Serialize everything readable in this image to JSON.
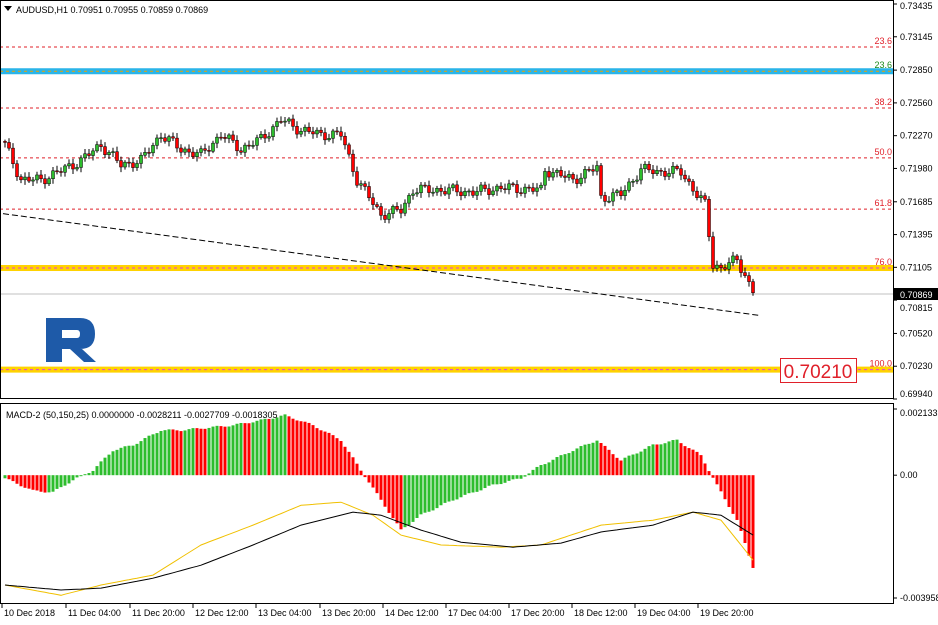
{
  "header": {
    "symbol_info": "AUDUSD,H1  0.70951 0.70955 0.70859 0.70869",
    "collapse_icon": "triangle-down-icon"
  },
  "indicator": {
    "label": "MACD-2 (50,150,25) 0.0000000 -0.0028211 -0.0027709 -0.0018305"
  },
  "colors": {
    "bull": "#2dbd2d",
    "bear": "#ff0000",
    "blue_band": "#2ab4e8",
    "yellow_band": "#ffd200",
    "signal": "#f0c000",
    "logo": "#1e5aa8"
  },
  "price_label": "0.70210",
  "chart_data": [
    {
      "type": "candlestick",
      "title": "AUDUSD,H1",
      "ylim": [
        0.6994,
        0.73435
      ],
      "y_ticks": [
        "0.73435",
        "0.73145",
        "0.72850",
        "0.72560",
        "0.72270",
        "0.71980",
        "0.71685",
        "0.71395",
        "0.71105",
        "0.70815",
        "0.70520",
        "0.70230",
        "0.69940"
      ],
      "x_ticks": [
        "10 Dec 2018",
        "11 Dec 04:00",
        "11 Dec 20:00",
        "12 Dec 12:00",
        "13 Dec 04:00",
        "13 Dec 20:00",
        "14 Dec 12:00",
        "17 Dec 04:00",
        "17 Dec 20:00",
        "18 Dec 12:00",
        "19 Dec 04:00",
        "19 Dec 20:00"
      ],
      "current_price": "0.70869",
      "close_path": [
        [
          0,
          0.7219
        ],
        [
          4,
          0.7188
        ],
        [
          9,
          0.7188
        ],
        [
          14,
          0.7196
        ],
        [
          19,
          0.7205
        ],
        [
          24,
          0.7219
        ],
        [
          29,
          0.7201
        ],
        [
          34,
          0.7205
        ],
        [
          39,
          0.7228
        ],
        [
          44,
          0.7215
        ],
        [
          49,
          0.721
        ],
        [
          54,
          0.7228
        ],
        [
          59,
          0.7215
        ],
        [
          64,
          0.7224
        ],
        [
          69,
          0.7241
        ],
        [
          74,
          0.7232
        ],
        [
          79,
          0.7228
        ],
        [
          84,
          0.7228
        ],
        [
          88,
          0.7188
        ],
        [
          94,
          0.7157
        ],
        [
          99,
          0.7161
        ],
        [
          102,
          0.7179
        ],
        [
          109,
          0.7179
        ],
        [
          117,
          0.7177
        ],
        [
          124,
          0.7181
        ],
        [
          134,
          0.7179
        ],
        [
          135,
          0.7197
        ],
        [
          142,
          0.7188
        ],
        [
          148,
          0.7199
        ],
        [
          149,
          0.7172
        ],
        [
          154,
          0.7175
        ],
        [
          159,
          0.7197
        ],
        [
          164,
          0.7195
        ],
        [
          169,
          0.7195
        ],
        [
          173,
          0.7175
        ],
        [
          175,
          0.7166
        ],
        [
          177,
          0.7113
        ],
        [
          179,
          0.711
        ],
        [
          183,
          0.7117
        ],
        [
          185,
          0.7104
        ],
        [
          187,
          0.7088
        ]
      ],
      "fib_levels": [
        {
          "label": "23.6",
          "price": 0.73055,
          "style": "red-dash"
        },
        {
          "label": "23.6",
          "price": 0.7284,
          "style": "blue-band"
        },
        {
          "label": "38.2",
          "price": 0.72515,
          "style": "red-dash"
        },
        {
          "label": "50.0",
          "price": 0.72073,
          "style": "red-dash"
        },
        {
          "label": "61.8",
          "price": 0.7162,
          "style": "red-dash"
        },
        {
          "label": "76.0",
          "price": 0.71099,
          "style": "yellow-band"
        },
        {
          "label": "100.0",
          "price": 0.702,
          "style": "yellow-band"
        }
      ],
      "trendline": [
        [
          0,
          0.7158
        ],
        [
          188,
          0.7068
        ]
      ]
    },
    {
      "type": "bar",
      "title": "MACD-2 (50,150,25)",
      "ylim": [
        -0.003958,
        0.002133
      ],
      "y_ticks": [
        "0.002133",
        "0.00",
        "-0.003958"
      ],
      "histogram_path": [
        [
          0,
          -0.0001
        ],
        [
          7,
          -0.0005
        ],
        [
          12,
          -0.00055
        ],
        [
          17,
          -0.00016
        ],
        [
          22,
          0.00016
        ],
        [
          27,
          0.0008
        ],
        [
          32,
          0.00097
        ],
        [
          39,
          0.00145
        ],
        [
          44,
          0.00145
        ],
        [
          57,
          0.00161
        ],
        [
          64,
          0.00177
        ],
        [
          70,
          0.00193
        ],
        [
          77,
          0.00161
        ],
        [
          84,
          0.00113
        ],
        [
          89,
          0.00016
        ],
        [
          94,
          -0.0008
        ],
        [
          99,
          -0.00177
        ],
        [
          104,
          -0.00129
        ],
        [
          112,
          -0.0008
        ],
        [
          122,
          -0.00032
        ],
        [
          129,
          -0.0001
        ],
        [
          134,
          0.00032
        ],
        [
          142,
          0.0008
        ],
        [
          148,
          0.00113
        ],
        [
          154,
          0.00048
        ],
        [
          162,
          0.00097
        ],
        [
          168,
          0.00113
        ],
        [
          174,
          0.00064
        ],
        [
          178,
          -0.00032
        ],
        [
          183,
          -0.00145
        ],
        [
          187,
          -0.00296
        ]
      ],
      "macd_line": [
        [
          0,
          -0.00354
        ],
        [
          14,
          -0.0037
        ],
        [
          24,
          -0.00364
        ],
        [
          37,
          -0.00332
        ],
        [
          49,
          -0.0029
        ],
        [
          62,
          -0.00225
        ],
        [
          74,
          -0.00161
        ],
        [
          87,
          -0.00119
        ],
        [
          94,
          -0.00129
        ],
        [
          104,
          -0.00177
        ],
        [
          114,
          -0.00216
        ],
        [
          127,
          -0.00232
        ],
        [
          139,
          -0.00219
        ],
        [
          149,
          -0.00183
        ],
        [
          162,
          -0.00161
        ],
        [
          172,
          -0.00119
        ],
        [
          179,
          -0.00129
        ],
        [
          187,
          -0.00193
        ]
      ],
      "signal_line": [
        [
          0,
          -0.00354
        ],
        [
          14,
          -0.00387
        ],
        [
          24,
          -0.00354
        ],
        [
          37,
          -0.00322
        ],
        [
          49,
          -0.00225
        ],
        [
          62,
          -0.00161
        ],
        [
          74,
          -0.00097
        ],
        [
          84,
          -0.00087
        ],
        [
          92,
          -0.00129
        ],
        [
          99,
          -0.00193
        ],
        [
          109,
          -0.00225
        ],
        [
          124,
          -0.00232
        ],
        [
          134,
          -0.00225
        ],
        [
          149,
          -0.00161
        ],
        [
          162,
          -0.00145
        ],
        [
          172,
          -0.00119
        ],
        [
          179,
          -0.00145
        ],
        [
          184,
          -0.00225
        ],
        [
          187,
          -0.00274
        ]
      ]
    }
  ]
}
